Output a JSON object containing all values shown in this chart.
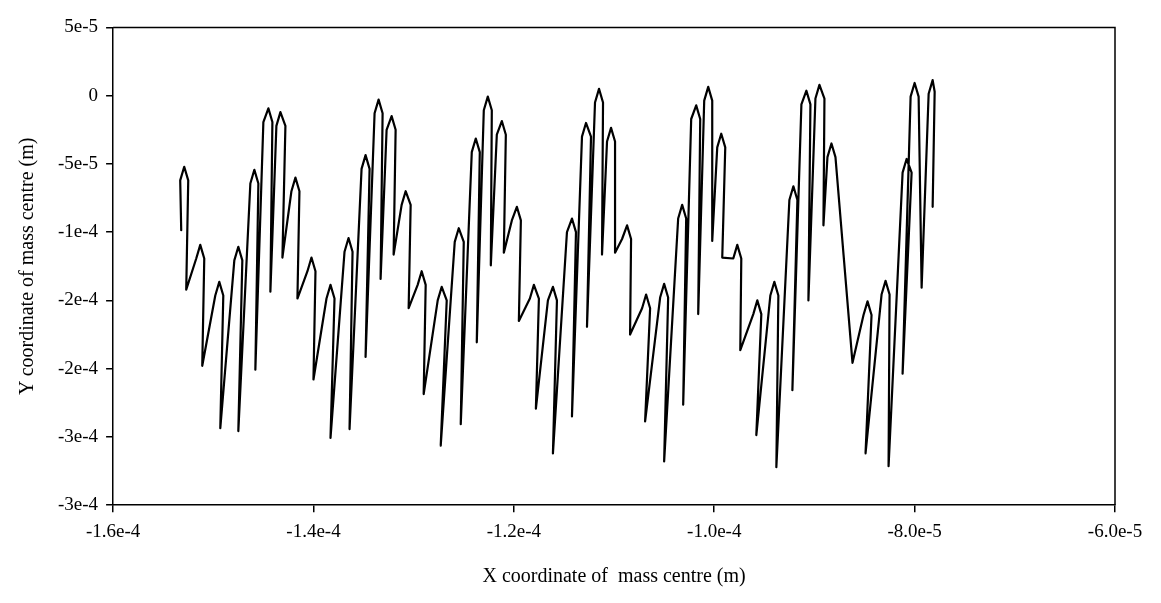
{
  "chart_data": {
    "type": "line",
    "xlabel": "X coordinate of  mass centre (m)",
    "ylabel": "Y coordinate of mass centre (m)",
    "xlim": [
      -0.00016,
      -6e-05
    ],
    "xticks": [
      {
        "value": -0.00016,
        "label": "-1.6e-4"
      },
      {
        "value": -0.00014,
        "label": "-1.4e-4"
      },
      {
        "value": -0.00012,
        "label": "-1.2e-4"
      },
      {
        "value": -0.0001,
        "label": "-1.0e-4"
      },
      {
        "value": -8e-05,
        "label": "-8.0e-5"
      },
      {
        "value": -6e-05,
        "label": "-6.0e-5"
      }
    ],
    "ylim": [
      -0.0003,
      5e-05
    ],
    "yticks": [
      {
        "value": -0.0003,
        "label": "-3e-4"
      },
      {
        "value": -0.00025,
        "label": "-3e-4"
      },
      {
        "value": -0.0002,
        "label": "-2e-4"
      },
      {
        "value": -0.00015,
        "label": "-2e-4"
      },
      {
        "value": -0.0001,
        "label": "-1e-4"
      },
      {
        "value": -5e-05,
        "label": "-5e-5"
      },
      {
        "value": 0,
        "label": "0"
      },
      {
        "value": 5e-05,
        "label": "5e-5"
      }
    ],
    "grid": false,
    "legend": false,
    "marker": "none",
    "line_style": "solid",
    "series": [
      {
        "color": "#000000",
        "x": [
          -0.0001532,
          -0.0001533,
          -0.0001529,
          -0.0001525,
          -0.0001527,
          -0.0001517,
          -0.0001513,
          -0.0001509,
          -0.0001511,
          -0.0001498,
          -0.0001494,
          -0.000149,
          -0.0001493,
          -0.0001479,
          -0.0001475,
          -0.0001471,
          -0.0001475,
          -0.0001463,
          -0.0001459,
          -0.0001455,
          -0.0001458,
          -0.000145,
          -0.0001445,
          -0.0001441,
          -0.0001443,
          -0.0001437,
          -0.0001433,
          -0.0001428,
          -0.0001431,
          -0.0001422,
          -0.0001418,
          -0.0001414,
          -0.0001416,
          -0.0001406,
          -0.0001402,
          -0.0001398,
          -0.00014,
          -0.0001387,
          -0.0001383,
          -0.0001379,
          -0.0001383,
          -0.0001369,
          -0.0001365,
          -0.0001361,
          -0.0001364,
          -0.0001352,
          -0.0001348,
          -0.0001344,
          -0.0001348,
          -0.0001339,
          -0.0001335,
          -0.0001331,
          -0.0001333,
          -0.0001327,
          -0.0001322,
          -0.0001318,
          -0.000132,
          -0.0001312,
          -0.0001308,
          -0.0001303,
          -0.0001305,
          -0.0001296,
          -0.0001292,
          -0.0001288,
          -0.000129,
          -0.0001276,
          -0.0001272,
          -0.0001267,
          -0.0001273,
          -0.0001259,
          -0.0001255,
          -0.000125,
          -0.0001253,
          -0.0001242,
          -0.0001238,
          -0.0001234,
          -0.0001237,
          -0.000123,
          -0.0001226,
          -0.0001222,
          -0.0001223,
          -0.0001217,
          -0.0001212,
          -0.0001208,
          -0.000121,
          -0.0001202,
          -0.0001197,
          -0.0001193,
          -0.0001195,
          -0.0001184,
          -0.000118,
          -0.0001175,
          -0.0001178,
          -0.0001166,
          -0.0001161,
          -0.0001157,
          -0.0001161,
          -0.0001147,
          -0.0001142,
          -0.0001138,
          -0.0001142,
          -0.0001132,
          -0.0001128,
          -0.0001123,
          -0.0001127,
          -0.0001119,
          -0.0001115,
          -0.0001111,
          -0.0001112,
          -0.0001107,
          -0.0001103,
          -0.0001099,
          -0.0001099,
          -0.0001092,
          -0.0001087,
          -0.0001083,
          -0.0001084,
          -0.0001072,
          -0.0001068,
          -0.0001064,
          -0.0001069,
          -0.0001054,
          -0.000105,
          -0.0001046,
          -0.000105,
          -0.0001036,
          -0.0001032,
          -0.0001028,
          -0.0001031,
          -0.0001023,
          -0.0001018,
          -0.0001014,
          -0.0001016,
          -0.000101,
          -0.0001006,
          -0.0001002,
          -0.0001002,
          -9.97e-05,
          -9.93e-05,
          -9.89e-05,
          -9.92e-05,
          -9.81e-05,
          -9.77e-05,
          -9.73e-05,
          -9.74e-05,
          -9.61e-05,
          -9.57e-05,
          -9.53e-05,
          -9.58e-05,
          -9.44e-05,
          -9.4e-05,
          -9.36e-05,
          -9.38e-05,
          -9.25e-05,
          -9.21e-05,
          -9.17e-05,
          -9.22e-05,
          -9.13e-05,
          -9.08e-05,
          -9.04e-05,
          -9.06e-05,
          -8.99e-05,
          -8.95e-05,
          -8.9e-05,
          -8.91e-05,
          -8.87e-05,
          -8.83e-05,
          -8.79e-05,
          -8.62e-05,
          -8.51e-05,
          -8.47e-05,
          -8.43e-05,
          -8.49e-05,
          -8.33e-05,
          -8.29e-05,
          -8.25e-05,
          -8.26e-05,
          -8.12e-05,
          -8.08e-05,
          -8.03e-05,
          -8.12e-05,
          -8.04e-05,
          -8e-05,
          -7.96e-05,
          -7.93e-05,
          -7.86e-05,
          -7.82e-05,
          -7.8e-05,
          -7.82e-05
        ],
        "values": [
          -9.86e-05,
          -6.21e-05,
          -5.21e-05,
          -6.21e-05,
          -0.0001421,
          -0.0001193,
          -0.0001093,
          -0.0001193,
          -0.0001979,
          -0.0001464,
          -0.0001364,
          -0.0001464,
          -0.0002436,
          -0.0001207,
          -0.0001107,
          -0.0001207,
          -0.0002457,
          -6.43e-05,
          -5.43e-05,
          -6.43e-05,
          -0.0002007,
          -1.93e-05,
          -9.3e-06,
          -1.93e-05,
          -0.0001436,
          -2.21e-05,
          -1.21e-05,
          -2.21e-05,
          -0.0001186,
          -7e-05,
          -6e-05,
          -7e-05,
          -0.0001486,
          -0.0001286,
          -0.0001186,
          -0.0001286,
          -0.0002079,
          -0.0001486,
          -0.0001386,
          -0.0001486,
          -0.0002507,
          -0.0001143,
          -0.0001043,
          -0.0001143,
          -0.0002443,
          -5.36e-05,
          -4.36e-05,
          -5.36e-05,
          -0.0001914,
          -1.29e-05,
          -2.9e-06,
          -1.29e-05,
          -0.0001343,
          -2.5e-05,
          -1.5e-05,
          -2.5e-05,
          -0.0001164,
          -8e-05,
          -7e-05,
          -8e-05,
          -0.0001557,
          -0.0001386,
          -0.0001286,
          -0.0001386,
          -0.0002186,
          -0.00015,
          -0.00014,
          -0.00015,
          -0.0002564,
          -0.0001071,
          -9.71e-05,
          -0.0001071,
          -0.0002407,
          -4.14e-05,
          -3.14e-05,
          -4.14e-05,
          -0.0001807,
          -1.07e-05,
          -7e-07,
          -1.07e-05,
          -0.0001243,
          -2.86e-05,
          -1.86e-05,
          -2.86e-05,
          -0.000115,
          -9.14e-05,
          -8.14e-05,
          -9.14e-05,
          -0.000165,
          -0.0001486,
          -0.0001386,
          -0.0001486,
          -0.0002293,
          -0.00015,
          -0.00014,
          -0.00015,
          -0.0002621,
          -0.0001,
          -9e-05,
          -0.0001,
          -0.000235,
          -3e-05,
          -2e-05,
          -3e-05,
          -0.0001693,
          -5e-06,
          5e-06,
          -5e-06,
          -0.0001164,
          -3.36e-05,
          -2.36e-05,
          -3.36e-05,
          -0.000115,
          -0.000105,
          -9.5e-05,
          -0.000105,
          -0.000175,
          -0.0001557,
          -0.0001457,
          -0.0001557,
          -0.0002386,
          -0.0001479,
          -0.0001379,
          -0.0001479,
          -0.0002679,
          -9e-05,
          -8e-05,
          -9e-05,
          -0.0002264,
          -1.71e-05,
          -7.1e-06,
          -1.71e-05,
          -0.00016,
          -3.6e-06,
          6.4e-06,
          -3.6e-06,
          -0.0001064,
          -3.79e-05,
          -2.79e-05,
          -3.79e-05,
          -0.0001186,
          -0.0001193,
          -0.0001093,
          -0.0001193,
          -0.0001864,
          -0.00016,
          -0.00015,
          -0.00016,
          -0.0002486,
          -0.0001464,
          -0.0001364,
          -0.0001464,
          -0.0002721,
          -7.64e-05,
          -6.64e-05,
          -7.64e-05,
          -0.0002157,
          -6.4e-06,
          3.6e-06,
          -6.4e-06,
          -0.00015,
          -2.1e-06,
          7.9e-06,
          -2.1e-06,
          -9.5e-05,
          -4.5e-05,
          -3.5e-05,
          -4.5e-05,
          -0.0001957,
          -0.0001607,
          -0.0001507,
          -0.0001607,
          -0.0002621,
          -0.0001457,
          -0.0001357,
          -0.0001457,
          -0.0002714,
          -5.64e-05,
          -4.64e-05,
          -5.64e-05,
          -0.0002036,
          -7e-07,
          9.3e-06,
          -7e-07,
          -0.0001407,
          1.4e-06,
          1.14e-05,
          2.9e-06,
          -8.14e-05
        ]
      }
    ]
  }
}
